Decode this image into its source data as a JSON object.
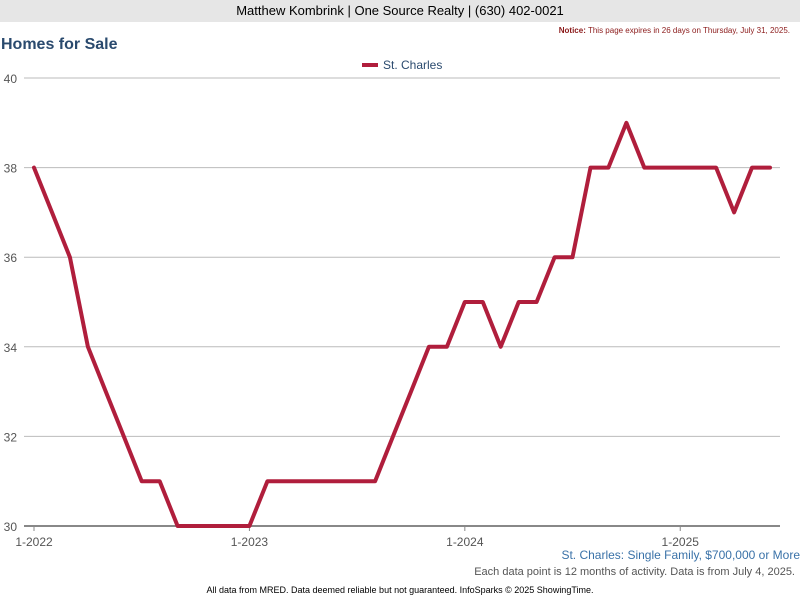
{
  "header": {
    "agent": "Matthew Kombrink | One Source Realty | (630) 402-0021",
    "notice_label": "Notice:",
    "notice_text": "This page expires in 26 days on Thursday, July 31, 2025."
  },
  "footer": {
    "subtitle": "St. Charles: Single Family, $700,000 or More",
    "note": "Each data point is 12 months of activity. Data is from July 4, 2025.",
    "disclaimer": "All data from MRED. Data deemed reliable but not guaranteed. InfoSparks © 2025 ShowingTime."
  },
  "colors": {
    "series": "#b01e3c",
    "grid": "#bbbbbb",
    "axis": "#888888",
    "title": "#2a4a6e"
  },
  "chart_data": {
    "type": "line",
    "title": "Homes for Sale",
    "xlabel": "",
    "ylabel": "",
    "ylim": [
      30,
      40
    ],
    "yticks": [
      30,
      32,
      34,
      36,
      38,
      40
    ],
    "xticks": [
      {
        "label": "1-2022",
        "index": 0
      },
      {
        "label": "1-2023",
        "index": 12
      },
      {
        "label": "1-2024",
        "index": 24
      },
      {
        "label": "1-2025",
        "index": 36
      }
    ],
    "x": [
      "2022-01",
      "2022-02",
      "2022-03",
      "2022-04",
      "2022-05",
      "2022-06",
      "2022-07",
      "2022-08",
      "2022-09",
      "2022-10",
      "2022-11",
      "2022-12",
      "2023-01",
      "2023-02",
      "2023-03",
      "2023-04",
      "2023-05",
      "2023-06",
      "2023-07",
      "2023-08",
      "2023-09",
      "2023-10",
      "2023-11",
      "2023-12",
      "2024-01",
      "2024-02",
      "2024-03",
      "2024-04",
      "2024-05",
      "2024-06",
      "2024-07",
      "2024-08",
      "2024-09",
      "2024-10",
      "2024-11",
      "2024-12",
      "2025-01",
      "2025-02",
      "2025-03",
      "2025-04",
      "2025-05",
      "2025-06"
    ],
    "series": [
      {
        "name": "St. Charles",
        "values": [
          38,
          37,
          36,
          34,
          33,
          32,
          31,
          31,
          30,
          30,
          30,
          30,
          30,
          31,
          31,
          31,
          31,
          31,
          31,
          31,
          32,
          33,
          34,
          34,
          35,
          35,
          34,
          35,
          35,
          36,
          36,
          38,
          38,
          39,
          38,
          38,
          38,
          38,
          38,
          37,
          38,
          38
        ]
      }
    ],
    "grid": true,
    "legend": "top-center"
  }
}
